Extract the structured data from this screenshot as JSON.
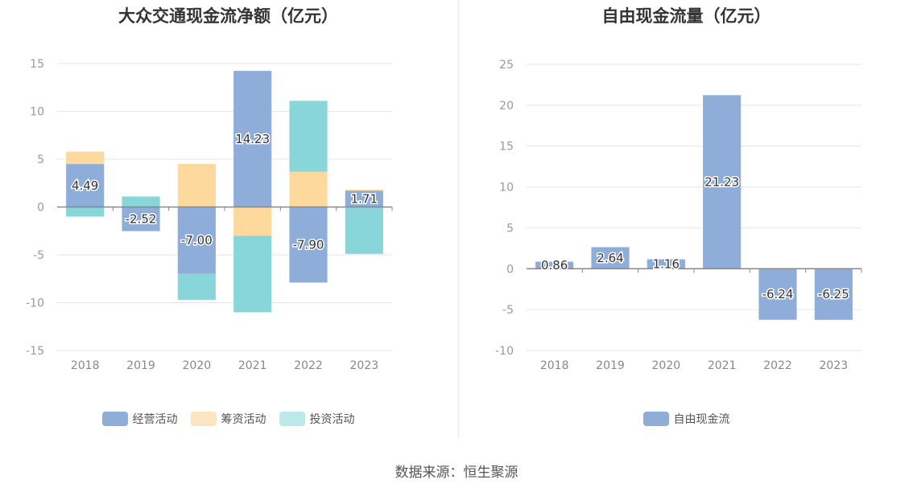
{
  "source": "数据来源：恒生聚源",
  "colors": {
    "operating": "#8eadd9",
    "financing": "#fdd99e",
    "investing": "#88d6d9",
    "freecash": "#8eadd9",
    "legend_financing": "#fde4c0",
    "legend_investing": "#bde8ea"
  },
  "chart_data": [
    {
      "type": "bar",
      "stacked": true,
      "title": "大众交通现金流净额（亿元）",
      "categories": [
        "2018",
        "2019",
        "2020",
        "2021",
        "2022",
        "2023"
      ],
      "ylim": [
        -15,
        15
      ],
      "yticks": [
        15,
        10,
        5,
        0,
        -5,
        -10,
        -15
      ],
      "grid": true,
      "legend_position": "bottom",
      "series": [
        {
          "name": "经营活动",
          "values": [
            4.49,
            -2.52,
            -7.0,
            14.23,
            -7.9,
            1.71
          ],
          "labels": [
            "4.49",
            "-2.52",
            "-7.00",
            "14.23",
            "-7.90",
            "1.71"
          ]
        },
        {
          "name": "筹资活动",
          "values": [
            1.3,
            0.0,
            4.5,
            -3.0,
            3.7,
            0.1
          ]
        },
        {
          "name": "投资活动",
          "values": [
            -1.0,
            1.1,
            -2.7,
            -8.0,
            7.4,
            -4.9
          ]
        }
      ]
    },
    {
      "type": "bar",
      "title": "自由现金流量（亿元）",
      "categories": [
        "2018",
        "2019",
        "2020",
        "2021",
        "2022",
        "2023"
      ],
      "ylim": [
        -10,
        25
      ],
      "yticks": [
        25,
        20,
        15,
        10,
        5,
        0,
        -5,
        -10
      ],
      "grid": true,
      "legend_position": "bottom",
      "series": [
        {
          "name": "自由现金流",
          "values": [
            0.86,
            2.64,
            1.16,
            21.23,
            -6.24,
            -6.25
          ],
          "labels": [
            "0.86",
            "2.64",
            "1.16",
            "21.23",
            "-6.24",
            "-6.25"
          ]
        }
      ]
    }
  ]
}
